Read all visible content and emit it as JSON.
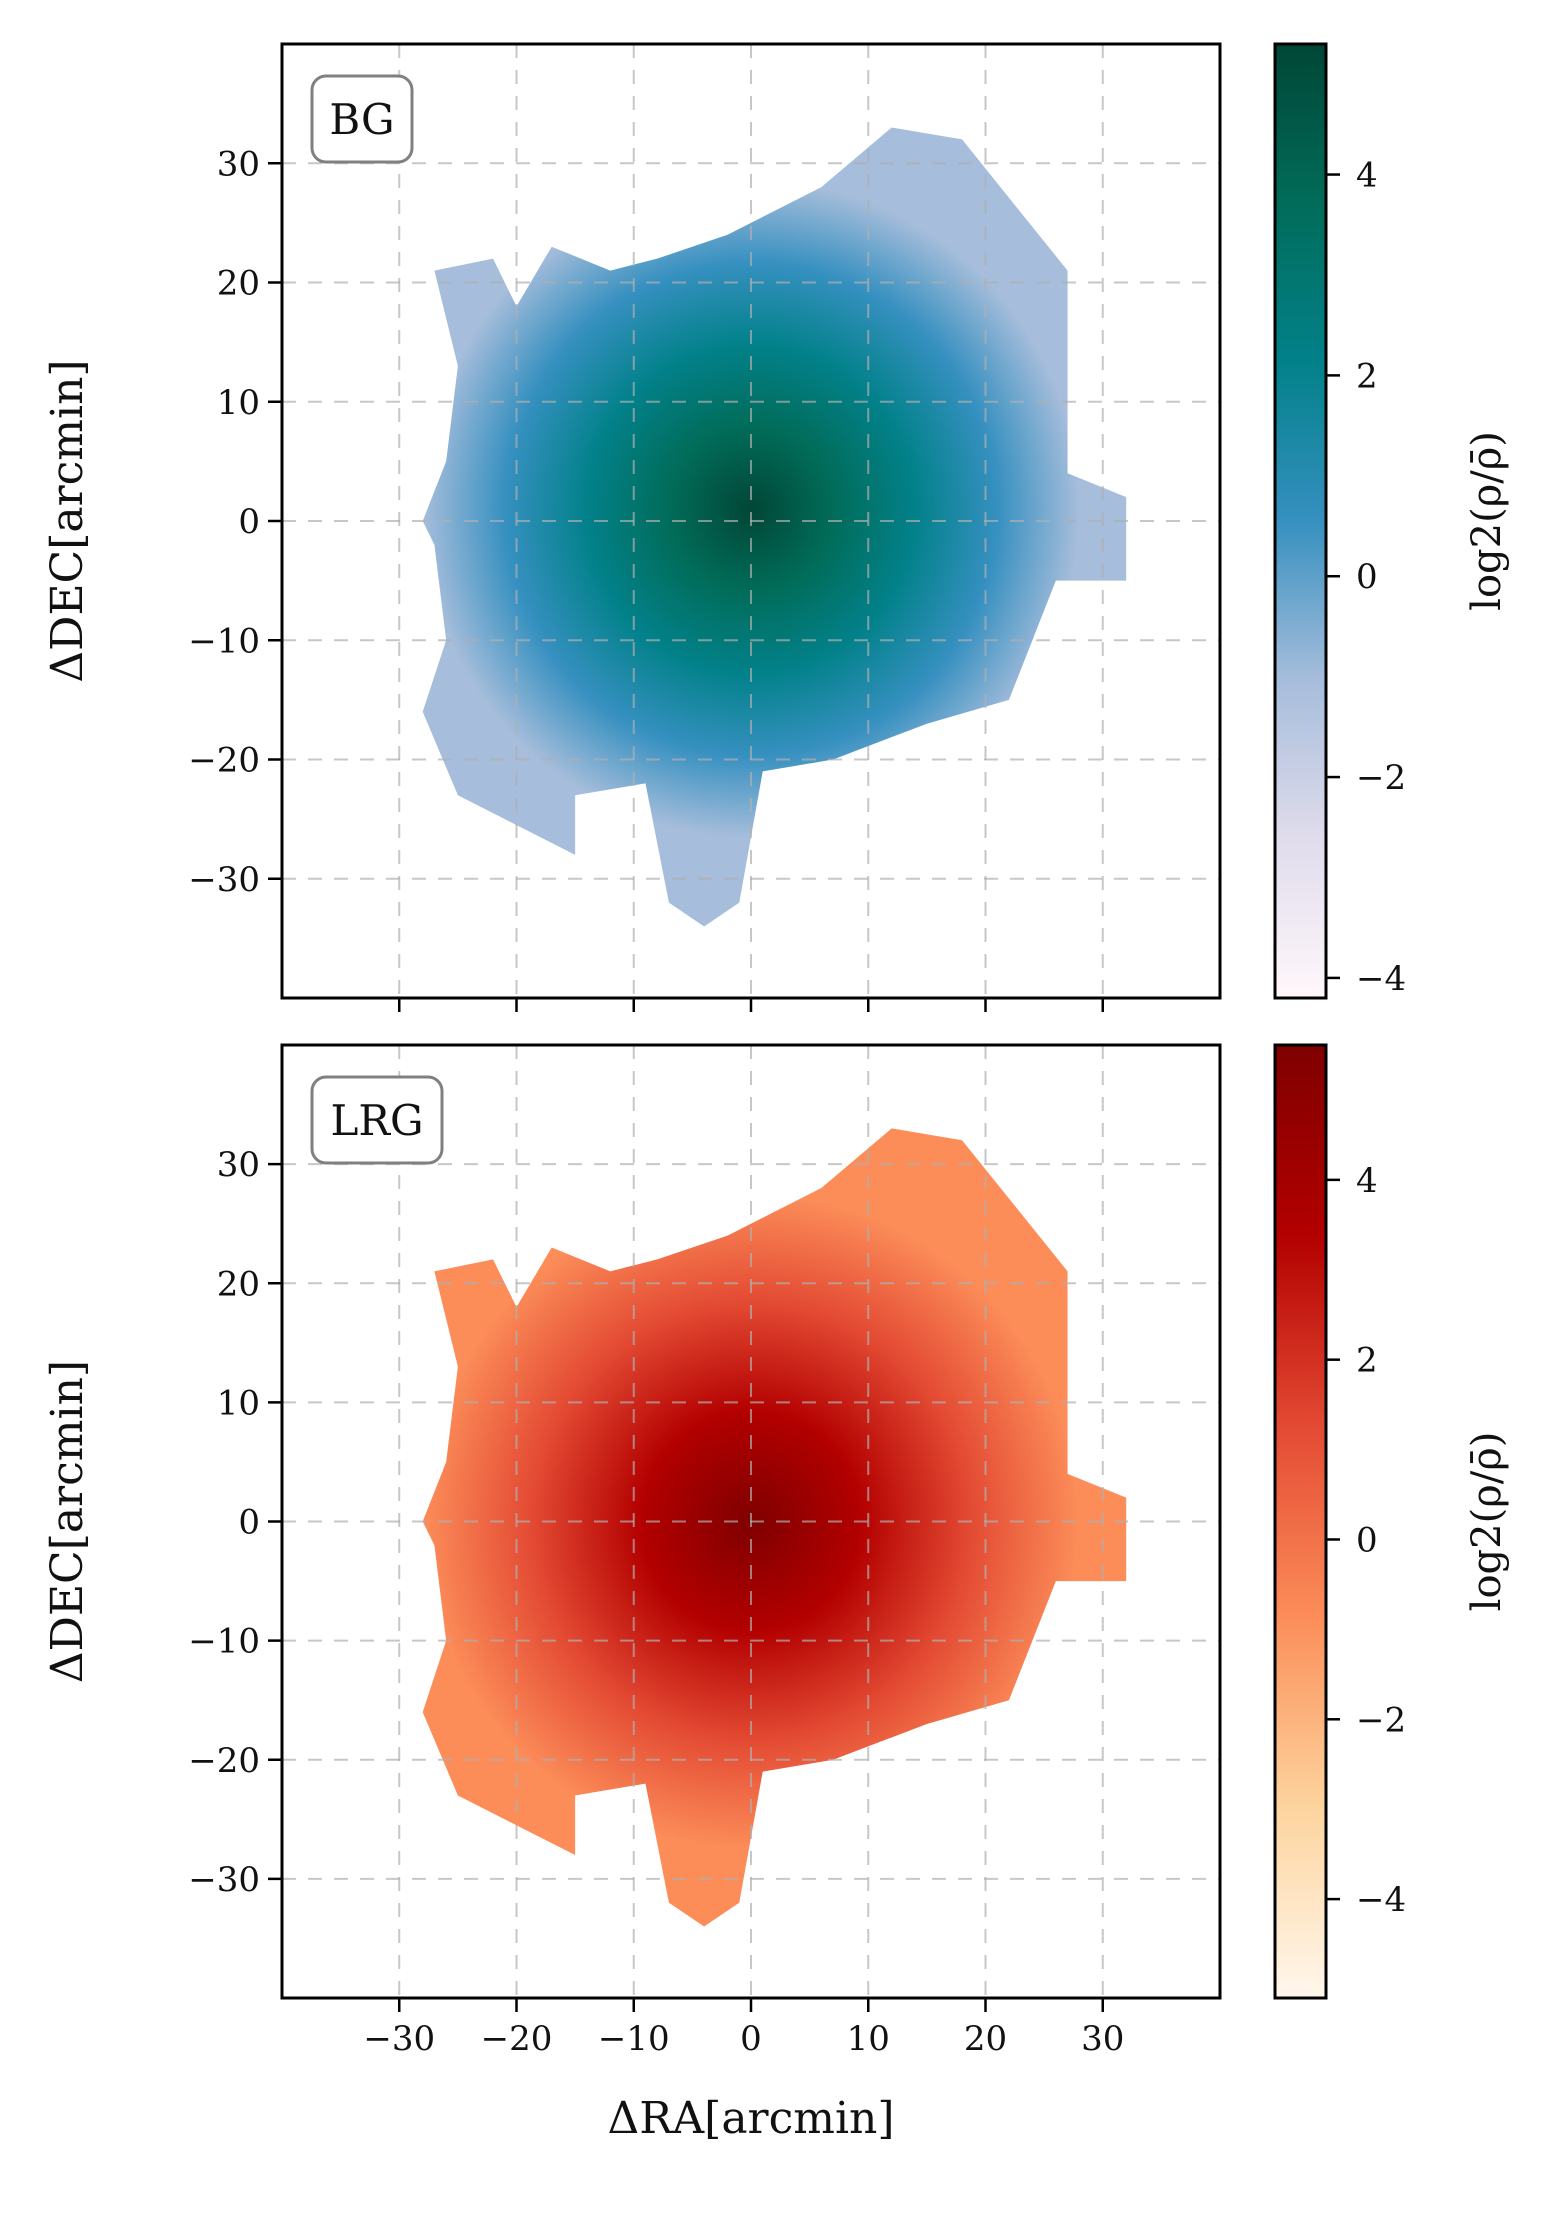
{
  "chart_data": [
    {
      "type": "heatmap",
      "panel_tag": "BG",
      "xlabel": "ΔRA[arcmin]",
      "ylabel": "ΔDEC[arcmin]",
      "xlim": [
        -40,
        40
      ],
      "ylim": [
        -40,
        40
      ],
      "x_ticks": [
        -30,
        -20,
        -10,
        0,
        10,
        20,
        30
      ],
      "y_ticks": [
        -30,
        -20,
        -10,
        0,
        10,
        20,
        30
      ],
      "x_tick_labels_visible": false,
      "grid": true,
      "colorbar": {
        "label": "log2(ρ/ρ̄)",
        "range": [
          -4.2,
          5.3
        ],
        "ticks": [
          -4,
          -2,
          0,
          2,
          4
        ],
        "colormap": [
          "#fff7fb",
          "#e0dcec",
          "#a6bddb",
          "#3690c0",
          "#02818a",
          "#016c59",
          "#014636"
        ]
      },
      "footprint_outline": [
        [
          -27,
          21
        ],
        [
          -22,
          22
        ],
        [
          -20,
          18
        ],
        [
          -17,
          23
        ],
        [
          -12,
          21
        ],
        [
          -8,
          22
        ],
        [
          -2,
          24
        ],
        [
          6,
          28
        ],
        [
          12,
          33
        ],
        [
          18,
          32
        ],
        [
          27,
          21
        ],
        [
          27,
          4
        ],
        [
          32,
          2
        ],
        [
          32,
          -5
        ],
        [
          26,
          -5
        ],
        [
          22,
          -15
        ],
        [
          15,
          -17
        ],
        [
          7,
          -20
        ],
        [
          1,
          -21
        ],
        [
          -1,
          -32
        ],
        [
          -4,
          -34
        ],
        [
          -7,
          -32
        ],
        [
          -9,
          -22
        ],
        [
          -15,
          -23
        ],
        [
          -15,
          -28
        ],
        [
          -19,
          -26
        ],
        [
          -25,
          -23
        ],
        [
          -28,
          -16
        ],
        [
          -26,
          -10
        ],
        [
          -27,
          -2
        ],
        [
          -28,
          0
        ],
        [
          -26,
          5
        ],
        [
          -25,
          13
        ]
      ],
      "density_peak": [
        0,
        1
      ]
    },
    {
      "type": "heatmap",
      "panel_tag": "LRG",
      "xlabel": "ΔRA[arcmin]",
      "ylabel": "ΔDEC[arcmin]",
      "xlim": [
        -40,
        40
      ],
      "ylim": [
        -40,
        40
      ],
      "x_ticks": [
        -30,
        -20,
        -10,
        0,
        10,
        20,
        30
      ],
      "y_ticks": [
        -30,
        -20,
        -10,
        0,
        10,
        20,
        30
      ],
      "x_tick_labels_visible": true,
      "grid": true,
      "colorbar": {
        "label": "log2(ρ/ρ̄)",
        "range": [
          -5.1,
          5.5
        ],
        "ticks": [
          -4,
          -2,
          0,
          2,
          4
        ],
        "colormap": [
          "#fff7ec",
          "#fdd49e",
          "#fc8d59",
          "#e34a33",
          "#b30000",
          "#7f0000"
        ]
      },
      "footprint_outline": [
        [
          -27,
          21
        ],
        [
          -22,
          22
        ],
        [
          -20,
          18
        ],
        [
          -17,
          23
        ],
        [
          -12,
          21
        ],
        [
          -8,
          22
        ],
        [
          -2,
          24
        ],
        [
          6,
          28
        ],
        [
          12,
          33
        ],
        [
          18,
          32
        ],
        [
          27,
          21
        ],
        [
          27,
          4
        ],
        [
          32,
          2
        ],
        [
          32,
          -5
        ],
        [
          26,
          -5
        ],
        [
          22,
          -15
        ],
        [
          15,
          -17
        ],
        [
          7,
          -20
        ],
        [
          1,
          -21
        ],
        [
          -1,
          -32
        ],
        [
          -4,
          -34
        ],
        [
          -7,
          -32
        ],
        [
          -9,
          -22
        ],
        [
          -15,
          -23
        ],
        [
          -15,
          -28
        ],
        [
          -19,
          -26
        ],
        [
          -25,
          -23
        ],
        [
          -28,
          -16
        ],
        [
          -26,
          -10
        ],
        [
          -27,
          -2
        ],
        [
          -28,
          0
        ],
        [
          -26,
          5
        ],
        [
          -25,
          13
        ]
      ],
      "density_peak": [
        0,
        0
      ]
    }
  ]
}
